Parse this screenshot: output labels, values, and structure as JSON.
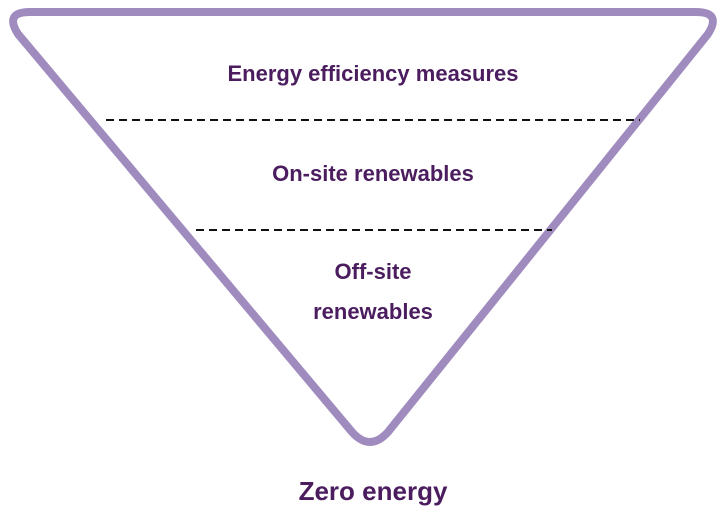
{
  "levels": [
    {
      "lines": [
        "Energy efficiency measures"
      ]
    },
    {
      "lines": [
        "On-site renewables"
      ]
    },
    {
      "lines": [
        "Off-site",
        "renewables"
      ]
    }
  ],
  "apex_label": "Zero energy"
}
